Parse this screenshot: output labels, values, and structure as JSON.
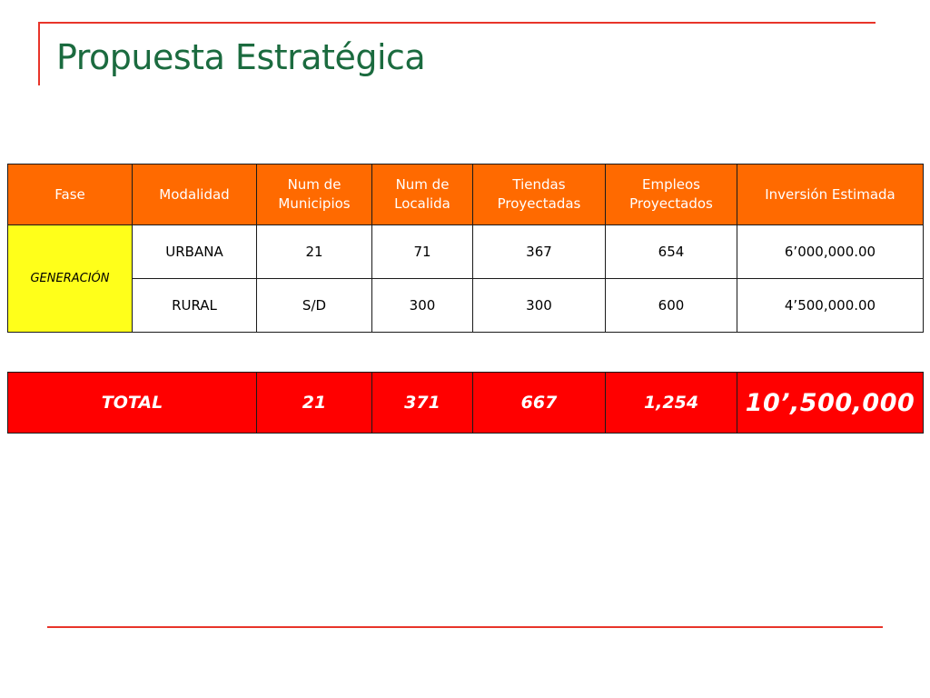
{
  "slide": {
    "title": "Propuesta Estratégica"
  },
  "table": {
    "headers": [
      "Fase",
      "Modalidad",
      "Num de Municipios",
      "Num de Localida",
      "Tiendas Proyectadas",
      "Empleos Proyectados",
      "Inversión Estimada"
    ],
    "fase": "GENERACIÓN",
    "rows": [
      {
        "modalidad": "URBANA",
        "municipios": "21",
        "localidades": "71",
        "tiendas": "367",
        "empleos": "654",
        "inversion": "6’000,000.00"
      },
      {
        "modalidad": "RURAL",
        "municipios": "S/D",
        "localidades": "300",
        "tiendas": "300",
        "empleos": "600",
        "inversion": "4’500,000.00"
      }
    ]
  },
  "totals": {
    "label": "TOTAL",
    "municipios": "21",
    "localidades": "371",
    "tiendas": "667",
    "empleos": "1,254",
    "inversion": "10’,500,000"
  },
  "colors": {
    "title": "#1b6b3f",
    "rule": "#e8352a",
    "header_bg": "#ff6a00",
    "fase_bg": "#ffff1a",
    "total_bg": "#ff0000"
  }
}
